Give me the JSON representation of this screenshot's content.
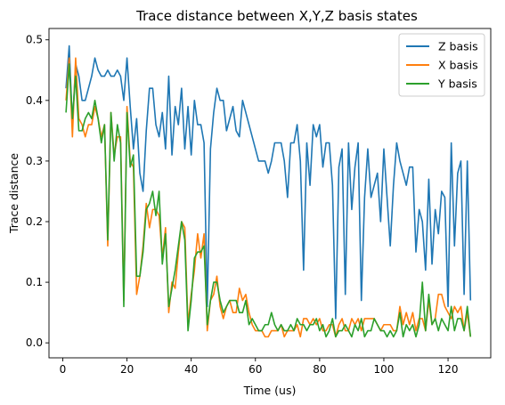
{
  "chart_data": {
    "type": "line",
    "title": "Trace distance between X,Y,Z basis states",
    "xlabel": "Time (us)",
    "ylabel": "Trace distance",
    "xlim": [
      -4.3,
      133.3
    ],
    "ylim": [
      -0.0247,
      0.5187
    ],
    "xticks": [
      0,
      20,
      40,
      60,
      80,
      100,
      120
    ],
    "yticks": [
      0.0,
      0.1,
      0.2,
      0.3,
      0.4,
      0.5
    ],
    "ytick_labels": [
      "0.0",
      "0.1",
      "0.2",
      "0.3",
      "0.4",
      "0.5"
    ],
    "legend_position": "upper-right",
    "grid": false,
    "x_start": 1,
    "x_step": 1,
    "series": [
      {
        "name": "Z basis",
        "color": "#1f77b4",
        "values": [
          0.42,
          0.49,
          0.36,
          0.46,
          0.44,
          0.4,
          0.4,
          0.42,
          0.44,
          0.47,
          0.45,
          0.44,
          0.44,
          0.45,
          0.44,
          0.44,
          0.45,
          0.44,
          0.4,
          0.47,
          0.39,
          0.32,
          0.37,
          0.28,
          0.25,
          0.35,
          0.42,
          0.42,
          0.36,
          0.34,
          0.38,
          0.32,
          0.44,
          0.31,
          0.39,
          0.36,
          0.42,
          0.32,
          0.39,
          0.31,
          0.4,
          0.36,
          0.36,
          0.33,
          0.06,
          0.32,
          0.38,
          0.42,
          0.4,
          0.4,
          0.35,
          0.37,
          0.39,
          0.35,
          0.34,
          0.4,
          0.38,
          0.36,
          0.34,
          0.32,
          0.3,
          0.3,
          0.3,
          0.28,
          0.3,
          0.33,
          0.33,
          0.33,
          0.3,
          0.24,
          0.33,
          0.33,
          0.36,
          0.3,
          0.12,
          0.33,
          0.26,
          0.36,
          0.34,
          0.36,
          0.29,
          0.33,
          0.33,
          0.26,
          0.04,
          0.29,
          0.32,
          0.08,
          0.33,
          0.22,
          0.29,
          0.33,
          0.07,
          0.24,
          0.32,
          0.24,
          0.26,
          0.28,
          0.2,
          0.32,
          0.24,
          0.16,
          0.26,
          0.33,
          0.3,
          0.28,
          0.26,
          0.29,
          0.29,
          0.15,
          0.22,
          0.2,
          0.12,
          0.27,
          0.13,
          0.22,
          0.18,
          0.25,
          0.24,
          0.06,
          0.33,
          0.16,
          0.28,
          0.3,
          0.08,
          0.3,
          0.07
        ]
      },
      {
        "name": "X basis",
        "color": "#ff7f0e",
        "values": [
          0.4,
          0.47,
          0.34,
          0.47,
          0.37,
          0.36,
          0.34,
          0.36,
          0.36,
          0.39,
          0.37,
          0.34,
          0.36,
          0.16,
          0.38,
          0.31,
          0.34,
          0.34,
          0.07,
          0.39,
          0.3,
          0.29,
          0.08,
          0.11,
          0.16,
          0.23,
          0.19,
          0.22,
          0.22,
          0.21,
          0.14,
          0.19,
          0.05,
          0.1,
          0.09,
          0.15,
          0.2,
          0.19,
          0.03,
          0.08,
          0.12,
          0.18,
          0.14,
          0.18,
          0.02,
          0.07,
          0.08,
          0.11,
          0.06,
          0.04,
          0.06,
          0.07,
          0.05,
          0.05,
          0.09,
          0.07,
          0.08,
          0.05,
          0.03,
          0.02,
          0.02,
          0.02,
          0.01,
          0.01,
          0.02,
          0.02,
          0.02,
          0.03,
          0.01,
          0.02,
          0.02,
          0.02,
          0.03,
          0.01,
          0.04,
          0.04,
          0.03,
          0.04,
          0.03,
          0.04,
          0.02,
          0.02,
          0.03,
          0.03,
          0.01,
          0.03,
          0.04,
          0.02,
          0.02,
          0.04,
          0.03,
          0.04,
          0.02,
          0.04,
          0.04,
          0.04,
          0.04,
          0.03,
          0.02,
          0.03,
          0.03,
          0.03,
          0.02,
          0.02,
          0.06,
          0.03,
          0.05,
          0.03,
          0.05,
          0.02,
          0.04,
          0.04,
          0.02,
          0.07,
          0.03,
          0.04,
          0.08,
          0.08,
          0.06,
          0.05,
          0.04,
          0.06,
          0.05,
          0.06,
          0.02,
          0.05,
          0.01
        ]
      },
      {
        "name": "Y basis",
        "color": "#2ca02c",
        "values": [
          0.38,
          0.46,
          0.37,
          0.44,
          0.35,
          0.35,
          0.37,
          0.38,
          0.37,
          0.4,
          0.37,
          0.33,
          0.36,
          0.17,
          0.38,
          0.3,
          0.36,
          0.33,
          0.06,
          0.38,
          0.29,
          0.31,
          0.11,
          0.11,
          0.15,
          0.22,
          0.23,
          0.25,
          0.21,
          0.25,
          0.13,
          0.18,
          0.06,
          0.09,
          0.12,
          0.16,
          0.2,
          0.17,
          0.02,
          0.07,
          0.14,
          0.15,
          0.15,
          0.16,
          0.03,
          0.07,
          0.1,
          0.1,
          0.07,
          0.05,
          0.06,
          0.07,
          0.07,
          0.07,
          0.05,
          0.05,
          0.07,
          0.03,
          0.04,
          0.03,
          0.02,
          0.02,
          0.03,
          0.03,
          0.05,
          0.03,
          0.02,
          0.03,
          0.02,
          0.02,
          0.03,
          0.02,
          0.04,
          0.03,
          0.03,
          0.02,
          0.03,
          0.03,
          0.04,
          0.02,
          0.03,
          0.01,
          0.02,
          0.04,
          0.01,
          0.02,
          0.02,
          0.03,
          0.02,
          0.01,
          0.03,
          0.02,
          0.04,
          0.01,
          0.02,
          0.02,
          0.04,
          0.03,
          0.02,
          0.02,
          0.01,
          0.02,
          0.01,
          0.02,
          0.05,
          0.01,
          0.03,
          0.02,
          0.03,
          0.01,
          0.03,
          0.1,
          0.02,
          0.08,
          0.03,
          0.04,
          0.02,
          0.04,
          0.03,
          0.02,
          0.06,
          0.02,
          0.04,
          0.04,
          0.02,
          0.06,
          0.01
        ]
      }
    ]
  }
}
